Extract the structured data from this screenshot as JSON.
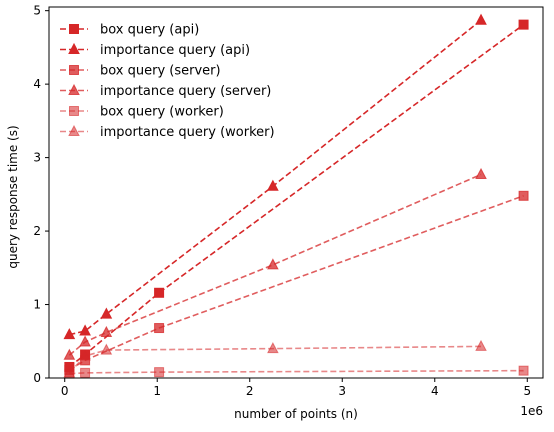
{
  "chart_data": {
    "type": "line",
    "xlabel": "number of points (n)",
    "ylabel": "query response time (s)",
    "x_offset_label": "1e6",
    "xlim": [
      -170000,
      5170000
    ],
    "ylim": [
      0,
      5.05
    ],
    "x_ticks": [
      0,
      1,
      2,
      3,
      4,
      5
    ],
    "y_ticks": [
      0,
      1,
      2,
      3,
      4,
      5
    ],
    "grid": false,
    "legend_position": "top-left",
    "series": [
      {
        "name": "box query (api)",
        "marker": "square",
        "color": "#d62728",
        "alpha": 1.0,
        "x": [
          50000,
          220000,
          1020000,
          4960000
        ],
        "y": [
          0.15,
          0.32,
          1.16,
          4.81
        ]
      },
      {
        "name": "importance query (api)",
        "marker": "triangle",
        "color": "#d62728",
        "alpha": 1.0,
        "x": [
          50000,
          220000,
          450000,
          2250000,
          4500000
        ],
        "y": [
          0.59,
          0.64,
          0.87,
          2.61,
          4.87
        ]
      },
      {
        "name": "box query (server)",
        "marker": "square",
        "color": "#d62728",
        "alpha": 0.75,
        "x": [
          50000,
          220000,
          1020000,
          4960000
        ],
        "y": [
          0.11,
          0.24,
          0.68,
          2.48
        ]
      },
      {
        "name": "importance query (server)",
        "marker": "triangle",
        "color": "#d62728",
        "alpha": 0.75,
        "x": [
          50000,
          220000,
          450000,
          2250000,
          4500000
        ],
        "y": [
          0.31,
          0.49,
          0.62,
          1.54,
          2.77
        ]
      },
      {
        "name": "box query (worker)",
        "marker": "square",
        "color": "#d62728",
        "alpha": 0.55,
        "x": [
          50000,
          220000,
          1020000,
          4960000
        ],
        "y": [
          0.06,
          0.07,
          0.08,
          0.1
        ]
      },
      {
        "name": "importance query (worker)",
        "marker": "triangle",
        "color": "#d62728",
        "alpha": 0.55,
        "x": [
          50000,
          220000,
          450000,
          2250000,
          4500000
        ],
        "y": [
          0.07,
          0.3,
          0.38,
          0.4,
          0.43
        ]
      }
    ]
  }
}
